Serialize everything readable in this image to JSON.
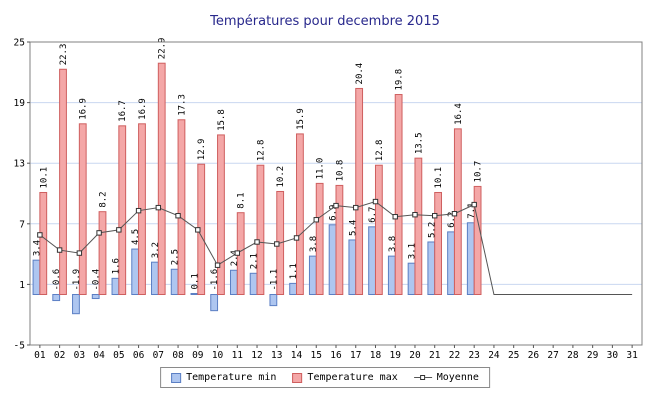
{
  "colors": {
    "title": "#28288c",
    "min_fill": "#aec6f0",
    "min_stroke": "#5b7fc4",
    "max_fill": "#f4a7a7",
    "max_stroke": "#cf5f5f",
    "grid": "#c9d7f0",
    "plot_border": "#808080",
    "axis": "#555555",
    "line": "#555555",
    "marker_fill": "#ffffff",
    "marker_stroke": "#333333",
    "label_text": "#000000"
  },
  "chart_data": {
    "type": "bar",
    "title": "Températures pour decembre 2015",
    "categories": [
      "01",
      "02",
      "03",
      "04",
      "05",
      "06",
      "07",
      "08",
      "09",
      "10",
      "11",
      "12",
      "13",
      "14",
      "15",
      "16",
      "17",
      "18",
      "19",
      "20",
      "21",
      "22",
      "23",
      "24",
      "25",
      "26",
      "27",
      "28",
      "29",
      "30",
      "31"
    ],
    "xlabel": "",
    "ylabel": "",
    "ylim": [
      -5,
      25
    ],
    "yticks": [
      25,
      19,
      13,
      7,
      1,
      -5
    ],
    "grid": "horizontal",
    "legend_position": "bottom",
    "series": [
      {
        "name": "Temperature min",
        "type": "bar",
        "values": [
          3.4,
          -0.6,
          -1.9,
          -0.4,
          1.6,
          4.5,
          3.2,
          2.5,
          0.1,
          -1.6,
          2.4,
          2.1,
          -1.1,
          1.1,
          3.8,
          6.9,
          5.4,
          6.7,
          3.8,
          3.1,
          5.2,
          6.2,
          7.1,
          null,
          null,
          null,
          null,
          null,
          null,
          null,
          null
        ]
      },
      {
        "name": "Temperature max",
        "type": "bar",
        "values": [
          10.1,
          22.3,
          16.9,
          8.2,
          16.7,
          16.9,
          22.9,
          17.3,
          12.9,
          15.8,
          8.1,
          12.8,
          10.2,
          15.9,
          11.0,
          10.8,
          20.4,
          12.8,
          19.8,
          13.5,
          10.1,
          16.4,
          10.7,
          null,
          null,
          null,
          null,
          null,
          null,
          null,
          null
        ]
      },
      {
        "name": "Moyenne",
        "type": "line",
        "values": [
          5.9,
          4.4,
          4.1,
          6.1,
          6.4,
          8.3,
          8.6,
          7.8,
          6.4,
          2.9,
          4.1,
          5.2,
          5.0,
          5.6,
          7.4,
          8.8,
          8.6,
          9.2,
          7.7,
          7.9,
          7.8,
          8.0,
          8.9,
          0,
          0,
          0,
          0,
          0,
          0,
          0,
          0
        ]
      }
    ]
  }
}
